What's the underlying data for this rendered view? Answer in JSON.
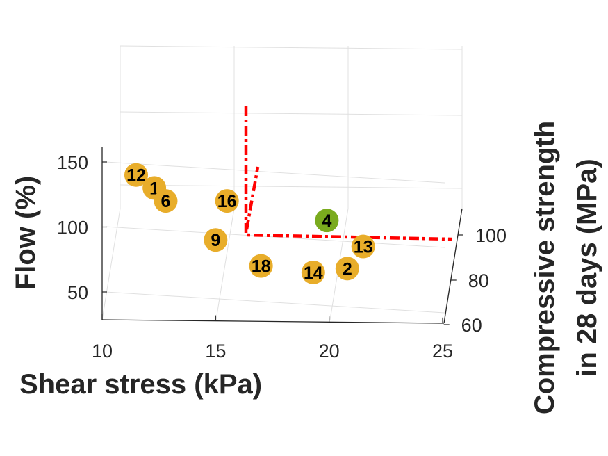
{
  "chart_data": {
    "type": "scatter3d",
    "xlabel": "Shear stress (kPa)",
    "ylabel": "Flow (%)",
    "zlabel_lines": [
      "Compressive strength",
      "in 28 days (MPa)"
    ],
    "x_ticks": [
      "10",
      "15",
      "20",
      "25"
    ],
    "y_ticks": [
      "50",
      "100",
      "150"
    ],
    "z_ticks": [
      "60",
      "80",
      "100"
    ],
    "xlim": [
      10,
      25
    ],
    "grid": true,
    "colors": {
      "point": "#E8AD2A",
      "highlight": "#7AAB1E",
      "constraint": "#FF0000",
      "grid": "#E0E0E0",
      "axis": "#262626"
    },
    "points": [
      {
        "label": "12",
        "shear_stress": 11.5,
        "flow": 140,
        "highlight": false
      },
      {
        "label": "1",
        "shear_stress": 12.3,
        "flow": 130,
        "highlight": false
      },
      {
        "label": "6",
        "shear_stress": 12.8,
        "flow": 120,
        "highlight": false
      },
      {
        "label": "16",
        "shear_stress": 15.5,
        "flow": 120,
        "highlight": false
      },
      {
        "label": "9",
        "shear_stress": 15.0,
        "flow": 90,
        "highlight": false
      },
      {
        "label": "18",
        "shear_stress": 17.0,
        "flow": 70,
        "highlight": false
      },
      {
        "label": "14",
        "shear_stress": 19.3,
        "flow": 65,
        "highlight": false
      },
      {
        "label": "2",
        "shear_stress": 20.8,
        "flow": 68,
        "highlight": false
      },
      {
        "label": "13",
        "shear_stress": 21.5,
        "flow": 85,
        "highlight": false
      },
      {
        "label": "4",
        "shear_stress": 19.9,
        "flow": 105,
        "highlight": true
      }
    ]
  }
}
